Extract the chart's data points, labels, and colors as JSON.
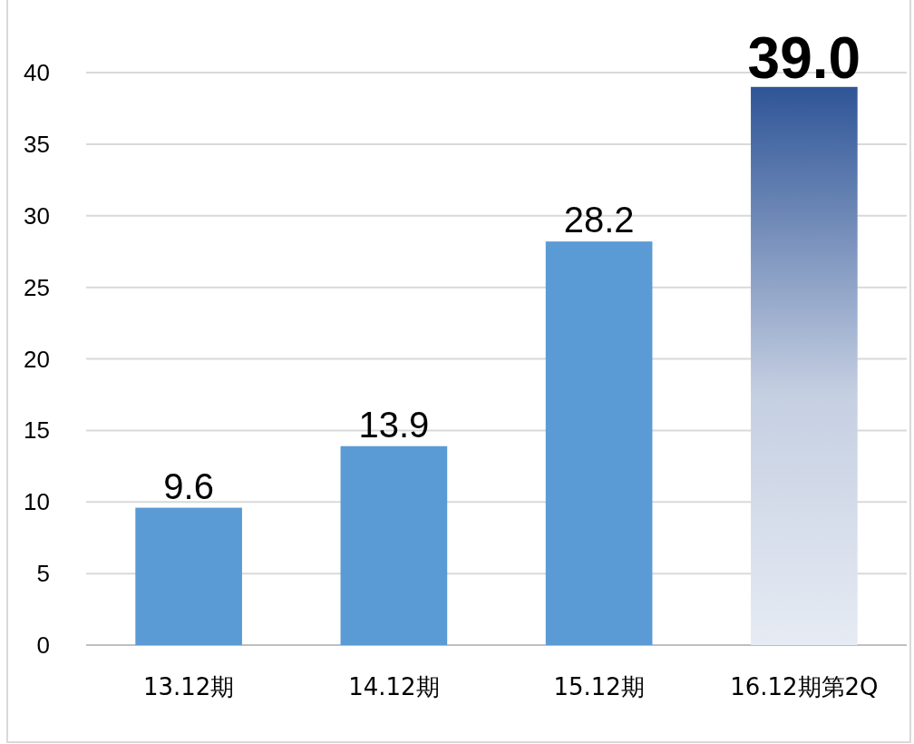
{
  "chart_data": {
    "type": "bar",
    "categories": [
      "13.12期",
      "14.12期",
      "15.12期",
      "16.12期第2Q"
    ],
    "values": [
      9.6,
      13.9,
      28.2,
      39.0
    ],
    "colors": [
      "#5b9bd5",
      "#5b9bd5",
      "#5b9bd5",
      "#2f5597"
    ],
    "ylim": [
      0,
      40
    ],
    "yticks": [
      0,
      5,
      10,
      15,
      20,
      25,
      30,
      35,
      40
    ],
    "grid": "y",
    "value_labels": [
      "9.6",
      "13.9",
      "28.2",
      "39.0"
    ]
  }
}
